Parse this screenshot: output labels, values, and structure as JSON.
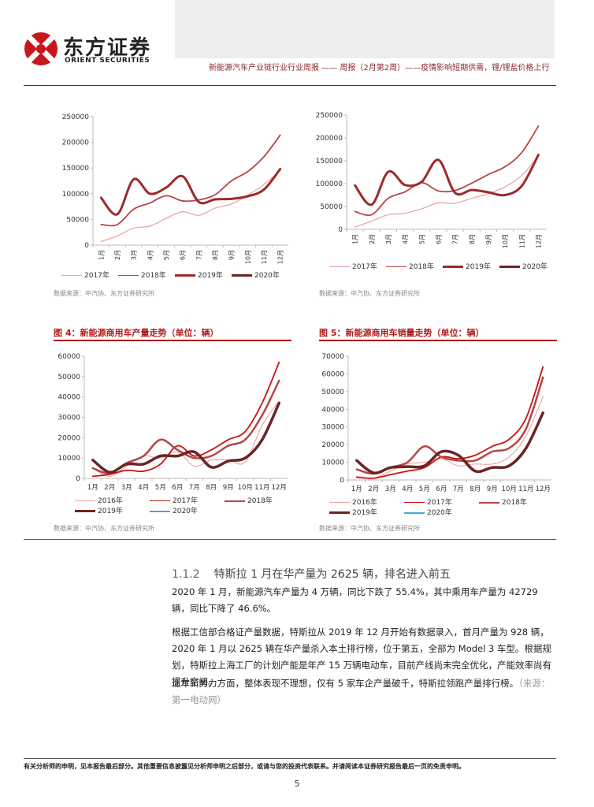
{
  "header": {
    "logo_cn": "东方证券",
    "logo_en": "ORIENT SECURITIES",
    "report_title": "新能源汽车产业链行业行业周报 —— 周报（2月第2周）——疫情影响短期供需，锂/锂盐价格上行"
  },
  "fig_top_left": {
    "source": "数据来源：中汽协、东方证券研究所"
  },
  "fig_top_right": {
    "source": "数据来源：中汽协、东方证券研究所"
  },
  "fig4": {
    "title": "图 4：新能源商用车产量走势（单位：辆）",
    "source": "数据来源：中汽协、东方证券研究所"
  },
  "fig5": {
    "title": "图 5：新能源商用车销量走势（单位：辆）",
    "source": "数据来源：中汽协、东方证券研究所"
  },
  "colors": {
    "accent": "#b01c1c",
    "s2016": "#f0a8a8",
    "s2017_light": "#e8a0a0",
    "s2017_red": "#cc1111",
    "s2018": "#b54545",
    "s2019": "#9c2b2b",
    "s2020_dark": "#6b2424",
    "s2020_cyan": "#3fb0c8"
  },
  "chart_data": [
    {
      "type": "line",
      "x": [
        "1月",
        "2月",
        "3月",
        "4月",
        "5月",
        "6月",
        "7月",
        "8月",
        "9月",
        "10月",
        "11月",
        "12月"
      ],
      "ylim": [
        0,
        250000
      ],
      "yticks": [
        0,
        50000,
        100000,
        150000,
        200000,
        250000
      ],
      "legend_position": "bottom",
      "series": [
        {
          "name": "2017年",
          "color": "#e8a0a0",
          "width": 1.2,
          "values": [
            7000,
            18000,
            33000,
            37000,
            52000,
            65000,
            58000,
            72000,
            80000,
            97000,
            118000,
            145000
          ]
        },
        {
          "name": "2018年",
          "color": "#b54545",
          "width": 1.8,
          "values": [
            40000,
            40000,
            70000,
            82000,
            96000,
            86000,
            88000,
            98000,
            125000,
            143000,
            172000,
            214000
          ]
        },
        {
          "name": "2019年",
          "color": "#9c2b2b",
          "width": 3,
          "values": [
            92000,
            60000,
            128000,
            100000,
            112000,
            134000,
            84000,
            89000,
            90000,
            95000,
            108000,
            148000
          ]
        },
        {
          "name": "2020年",
          "color": "#6b2424",
          "width": 3.5,
          "values": [
            null,
            null,
            null,
            null,
            null,
            null,
            null,
            null,
            null,
            null,
            null,
            null
          ]
        }
      ]
    },
    {
      "type": "line",
      "x": [
        "1月",
        "2月",
        "3月",
        "4月",
        "5月",
        "6月",
        "7月",
        "8月",
        "9月",
        "10月",
        "11月",
        "12月"
      ],
      "ylim": [
        0,
        250000
      ],
      "yticks": [
        0,
        50000,
        100000,
        150000,
        200000,
        250000
      ],
      "legend_position": "bottom",
      "series": [
        {
          "name": "2017年",
          "color": "#e8a0a0",
          "width": 1.2,
          "values": [
            5000,
            18000,
            32000,
            35000,
            45000,
            58000,
            57000,
            68000,
            78000,
            93000,
            118000,
            160000
          ]
        },
        {
          "name": "2018年",
          "color": "#b54545",
          "width": 1.8,
          "values": [
            39000,
            32000,
            68000,
            82000,
            102000,
            84000,
            85000,
            101000,
            120000,
            137000,
            168000,
            226000
          ]
        },
        {
          "name": "2019年",
          "color": "#9c2b2b",
          "width": 3,
          "values": [
            96000,
            54000,
            126000,
            97000,
            104000,
            152000,
            80000,
            86000,
            81000,
            75000,
            95000,
            163000
          ]
        },
        {
          "name": "2020年",
          "color": "#6b2424",
          "width": 3.5,
          "values": [
            null,
            null,
            null,
            null,
            null,
            null,
            null,
            null,
            null,
            null,
            null,
            null
          ]
        }
      ]
    },
    {
      "type": "line",
      "title": "图 4：新能源商用车产量走势（单位：辆）",
      "x": [
        "1月",
        "2月",
        "3月",
        "4月",
        "5月",
        "6月",
        "7月",
        "8月",
        "9月",
        "10月",
        "11月",
        "12月"
      ],
      "ylim": [
        0,
        60000
      ],
      "yticks": [
        0,
        10000,
        20000,
        30000,
        40000,
        50000,
        60000
      ],
      "legend_position": "bottom",
      "series": [
        {
          "name": "2016年",
          "color": "#f0a8a8",
          "width": 1.2,
          "values": [
            5000,
            1000,
            6000,
            11000,
            10000,
            13000,
            6000,
            9000,
            9000,
            8000,
            26000,
            38000
          ]
        },
        {
          "name": "2017年",
          "color": "#cc1111",
          "width": 1.8,
          "values": [
            1000,
            2000,
            4000,
            3500,
            7000,
            16000,
            11000,
            14000,
            19000,
            23000,
            37000,
            57000
          ]
        },
        {
          "name": "2018年",
          "color": "#b54545",
          "width": 2.5,
          "values": [
            5000,
            2500,
            7500,
            11000,
            19000,
            14000,
            10000,
            11000,
            16000,
            19000,
            31000,
            48000
          ]
        },
        {
          "name": "2019年",
          "color": "#6b2424",
          "width": 3.5,
          "values": [
            9000,
            3000,
            7000,
            7000,
            11000,
            11000,
            13000,
            5500,
            8500,
            10000,
            19000,
            37000
          ]
        },
        {
          "name": "2020年",
          "color": "#3fb0c8",
          "width": 2,
          "values": [
            null,
            null,
            null,
            null,
            null,
            null,
            null,
            null,
            null,
            null,
            null,
            null
          ]
        }
      ]
    },
    {
      "type": "line",
      "title": "图 5：新能源商用车销量走势（单位：辆）",
      "x": [
        "1月",
        "2月",
        "3月",
        "4月",
        "5月",
        "6月",
        "7月",
        "8月",
        "9月",
        "10月",
        "11月",
        "12月"
      ],
      "ylim": [
        0,
        70000
      ],
      "yticks": [
        0,
        10000,
        20000,
        30000,
        40000,
        50000,
        60000,
        70000
      ],
      "legend_position": "bottom",
      "series": [
        {
          "name": "2016年",
          "color": "#f0a8a8",
          "width": 1.2,
          "values": [
            2000,
            1000,
            5000,
            9000,
            10000,
            12000,
            8000,
            9000,
            9000,
            13000,
            25000,
            47000
          ]
        },
        {
          "name": "2017年",
          "color": "#cc1111",
          "width": 1.8,
          "values": [
            1500,
            1000,
            3000,
            5000,
            7000,
            13000,
            12000,
            14000,
            19000,
            23000,
            35000,
            64000
          ]
        },
        {
          "name": "2018年",
          "color": "#b54545",
          "width": 2.5,
          "values": [
            6000,
            3500,
            7000,
            10000,
            19000,
            13000,
            11000,
            11000,
            16000,
            18000,
            29000,
            58000
          ]
        },
        {
          "name": "2019年",
          "color": "#6b2424",
          "width": 3.5,
          "values": [
            11000,
            4000,
            7000,
            7500,
            8000,
            16000,
            14000,
            5000,
            7000,
            8000,
            18000,
            38000
          ]
        },
        {
          "name": "2020年",
          "color": "#3fb0c8",
          "width": 2,
          "values": [
            null,
            null,
            null,
            null,
            null,
            null,
            null,
            null,
            null,
            null,
            null,
            null
          ]
        }
      ]
    }
  ],
  "section": {
    "number": "1.1.2",
    "title": "特斯拉 1 月在华产量为 2625 辆，排名进入前五"
  },
  "paragraphs": [
    "2020 年 1 月，新能源汽车产量为 4 万辆，同比下跌了 55.4%，其中乘用车产量为 42729 辆，同比下降了 46.6%。",
    "根据工信部合格证产量数据，特斯拉从 2019 年 12 月开始有数据录入，首月产量为 928 辆，2020 年 1 月以 2625 辆在华产量杀入本土排行榜，位于第五，全部为 Model 3 车型。根据规划，特斯拉上海工厂的计划产能是年产 15 万辆电动车，目前产线尚未完全优化，产能效率尚有提升空间。",
    "造车新势力方面，整体表现不理想，仅有 5 家车企产量破千，特斯拉领跑产量排行榜。"
  ],
  "para3_source": "（来源：第一电动网）",
  "footer": {
    "disclaimer": "有关分析师的申明，见本报告最后部分。其他重要信息披露见分析师申明之后部分，或请与您的投资代表联系。并请阅读本证券研究报告最后一页的免责申明。",
    "page_number": "5"
  }
}
